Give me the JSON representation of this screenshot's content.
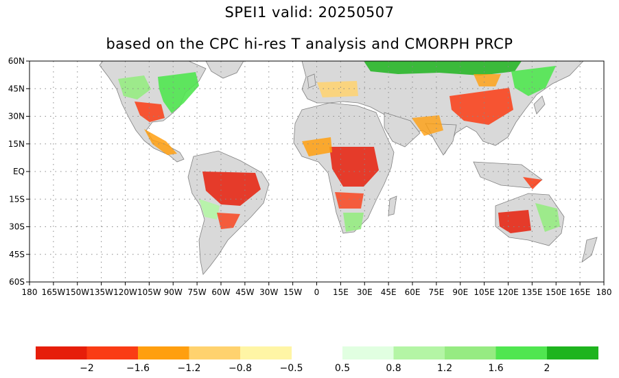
{
  "title": {
    "line1": "SPEI1   valid: 20250507",
    "line2": "based on the CPC hi-res T analysis and CMORPH PRCP"
  },
  "map": {
    "projection": "equirectangular",
    "lon_range": [
      -180,
      180
    ],
    "lat_range": [
      -60,
      60
    ],
    "grid": "dotted",
    "lat_ticks": [
      {
        "value": 60,
        "label": "60N"
      },
      {
        "value": 45,
        "label": "45N"
      },
      {
        "value": 30,
        "label": "30N"
      },
      {
        "value": 15,
        "label": "15N"
      },
      {
        "value": 0,
        "label": "EQ"
      },
      {
        "value": -15,
        "label": "15S"
      },
      {
        "value": -30,
        "label": "30S"
      },
      {
        "value": -45,
        "label": "45S"
      },
      {
        "value": -60,
        "label": "60S"
      }
    ],
    "lon_ticks": [
      {
        "value": -180,
        "label": "180"
      },
      {
        "value": -165,
        "label": "165W"
      },
      {
        "value": -150,
        "label": "150W"
      },
      {
        "value": -135,
        "label": "135W"
      },
      {
        "value": -120,
        "label": "120W"
      },
      {
        "value": -105,
        "label": "105W"
      },
      {
        "value": -90,
        "label": "90W"
      },
      {
        "value": -75,
        "label": "75W"
      },
      {
        "value": -60,
        "label": "60W"
      },
      {
        "value": -45,
        "label": "45W"
      },
      {
        "value": -30,
        "label": "30W"
      },
      {
        "value": -15,
        "label": "15W"
      },
      {
        "value": 0,
        "label": "0"
      },
      {
        "value": 15,
        "label": "15E"
      },
      {
        "value": 30,
        "label": "30E"
      },
      {
        "value": 45,
        "label": "45E"
      },
      {
        "value": 60,
        "label": "60E"
      },
      {
        "value": 75,
        "label": "75E"
      },
      {
        "value": 90,
        "label": "90E"
      },
      {
        "value": 105,
        "label": "105E"
      },
      {
        "value": 120,
        "label": "120E"
      },
      {
        "value": 135,
        "label": "135E"
      },
      {
        "value": 150,
        "label": "150E"
      },
      {
        "value": 165,
        "label": "165E"
      },
      {
        "value": 180,
        "label": "180"
      }
    ],
    "colors": {
      "land_nodata": "#c0c0c0",
      "land_outline": "#808080",
      "ocean": "#ffffff"
    }
  },
  "colorbar": {
    "dry_bins": [
      {
        "color": "#e61e0a"
      },
      {
        "color": "#fa3c14"
      },
      {
        "color": "#ff9f0f"
      },
      {
        "color": "#ffd26e"
      },
      {
        "color": "#fff5a5"
      }
    ],
    "wet_bins": [
      {
        "color": "#e1ffe1"
      },
      {
        "color": "#b4f5a5"
      },
      {
        "color": "#96eb82"
      },
      {
        "color": "#50e650"
      },
      {
        "color": "#1eb41e"
      }
    ],
    "dry_labels": [
      "−2",
      "−1.6",
      "−1.2",
      "−0.8",
      "−0.5"
    ],
    "wet_labels": [
      "0.5",
      "0.8",
      "1.2",
      "1.6",
      "2"
    ]
  }
}
